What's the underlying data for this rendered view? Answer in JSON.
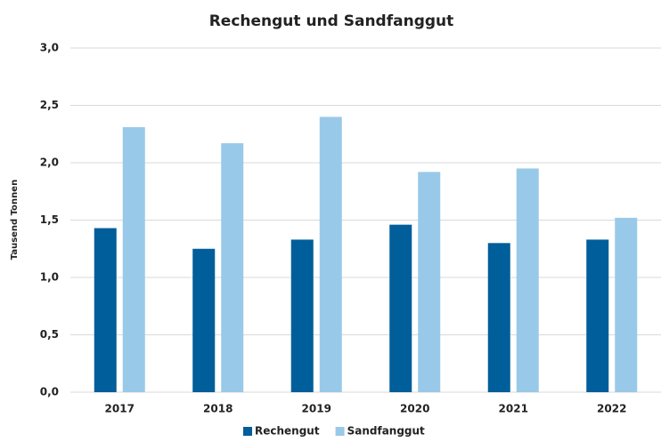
{
  "chart_data": {
    "type": "bar",
    "title": "Rechengut und Sandfanggut",
    "ylabel": "Tausend Tonnen",
    "categories": [
      "2017",
      "2018",
      "2019",
      "2020",
      "2021",
      "2022"
    ],
    "series": [
      {
        "name": "Rechengut",
        "color": "#005e9a",
        "values": [
          1.43,
          1.25,
          1.33,
          1.46,
          1.3,
          1.33
        ]
      },
      {
        "name": "Sandfanggut",
        "color": "#99c9e8",
        "values": [
          2.31,
          2.17,
          2.4,
          1.92,
          1.95,
          1.52
        ]
      }
    ],
    "ylim": [
      0,
      3
    ],
    "yticks": [
      {
        "value": 0,
        "label": "0,0"
      },
      {
        "value": 0.5,
        "label": "0,5"
      },
      {
        "value": 1,
        "label": "1,0"
      },
      {
        "value": 1.5,
        "label": "1,5"
      },
      {
        "value": 2,
        "label": "2,0"
      },
      {
        "value": 2.5,
        "label": "2,5"
      },
      {
        "value": 3,
        "label": "3,0"
      }
    ],
    "grid": true,
    "legend": "bottom"
  }
}
